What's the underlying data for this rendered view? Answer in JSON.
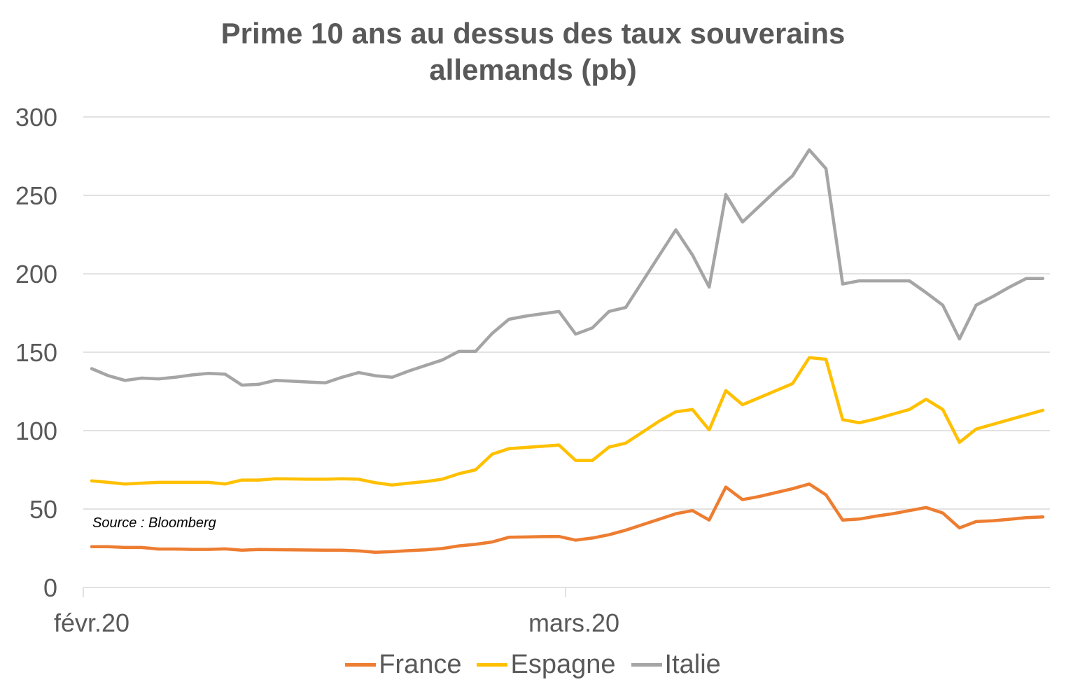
{
  "chart_data": {
    "type": "line",
    "title_line1": "Prime 10 ans au dessus des taux souverains",
    "title_line2": "allemands (pb)",
    "xlabel": "",
    "ylabel": "",
    "ylim": [
      0,
      300
    ],
    "yticks": [
      "0",
      "50",
      "100",
      "150",
      "200",
      "250",
      "300"
    ],
    "xtick_labels": [
      "févr.20",
      "mars.20"
    ],
    "grid": true,
    "legend_position": "bottom",
    "annotation": "Source : Bloomberg",
    "x_index_ticks": [
      0,
      29
    ],
    "n_points": 58,
    "series": [
      {
        "name": "France",
        "color": "#ED7D31",
        "values": [
          26,
          26,
          25.5,
          25.5,
          24.5,
          24.5,
          24.3,
          24.3,
          24.6,
          23.8,
          24.2,
          24.1,
          24,
          23.9,
          23.8,
          23.8,
          23.3,
          22.4,
          22.8,
          23.5,
          24,
          24.8,
          26.5,
          27.5,
          29,
          32,
          32.2,
          32.4,
          32.5,
          30.2,
          31.5,
          33.6,
          36.5,
          40,
          43.5,
          47,
          49,
          43,
          64,
          56,
          58,
          60.5,
          63,
          66,
          59,
          43,
          43.6,
          45.5,
          47,
          49,
          51,
          47.5,
          38,
          42,
          42.5,
          43.5,
          44.5,
          45
        ]
      },
      {
        "name": "Espagne",
        "color": "#FFC000",
        "values": [
          68,
          67,
          66,
          66.5,
          67,
          67,
          67,
          67,
          66,
          68.5,
          68.5,
          69.3,
          69.2,
          69,
          69,
          69.3,
          69,
          66.8,
          65.3,
          66.5,
          67.5,
          69,
          72.5,
          75,
          85,
          88.5,
          89.3,
          90,
          90.8,
          81,
          81,
          89.5,
          92,
          99,
          106,
          112,
          113.5,
          100.5,
          125.5,
          116.5,
          121,
          125.5,
          130,
          146.5,
          145.5,
          107,
          105,
          107.5,
          110.5,
          113.5,
          120,
          113.5,
          92.5,
          101,
          104,
          107,
          110,
          113
        ]
      },
      {
        "name": "Italie",
        "color": "#A5A5A5",
        "values": [
          139.5,
          135,
          132,
          133.5,
          133,
          134,
          135.5,
          136.5,
          136,
          129,
          129.5,
          132,
          131.5,
          131,
          130.5,
          134,
          137,
          135,
          134,
          138,
          141.5,
          145,
          150.5,
          150.5,
          162,
          171,
          173,
          174.5,
          176,
          161.5,
          165.5,
          176,
          178.5,
          195,
          211.5,
          228,
          212,
          191.5,
          250.5,
          233,
          243,
          253,
          262.5,
          279,
          267,
          193.5,
          195.5,
          195.5,
          195.5,
          195.5,
          188,
          180,
          158.5,
          180,
          185.5,
          191.5,
          197,
          197
        ]
      }
    ]
  }
}
